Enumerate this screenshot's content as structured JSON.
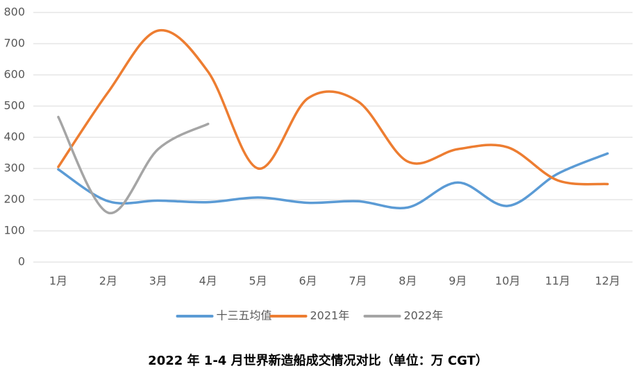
{
  "chart_data": {
    "type": "line",
    "title": "2022 年 1-4 月世界新造船成交情况对比（单位：万 CGT）",
    "categories": [
      "1月",
      "2月",
      "3月",
      "4月",
      "5月",
      "6月",
      "7月",
      "8月",
      "9月",
      "10月",
      "11月",
      "12月"
    ],
    "series": [
      {
        "name": "十三五均值",
        "color": "#5b9bd5",
        "values": [
          297,
          195,
          197,
          192,
          207,
          190,
          195,
          175,
          255,
          180,
          283,
          348
        ]
      },
      {
        "name": "2021年",
        "color": "#ed7d31",
        "values": [
          305,
          545,
          742,
          610,
          300,
          525,
          515,
          322,
          362,
          368,
          262,
          250
        ]
      },
      {
        "name": "2022年",
        "color": "#a5a5a5",
        "values": [
          465,
          158,
          362,
          443,
          null,
          null,
          null,
          null,
          null,
          null,
          null,
          null
        ]
      }
    ],
    "ylim": [
      0,
      800
    ],
    "yticks": [
      0,
      100,
      200,
      300,
      400,
      500,
      600,
      700,
      800
    ],
    "grid": true,
    "smooth": true,
    "legend": "bottom"
  }
}
